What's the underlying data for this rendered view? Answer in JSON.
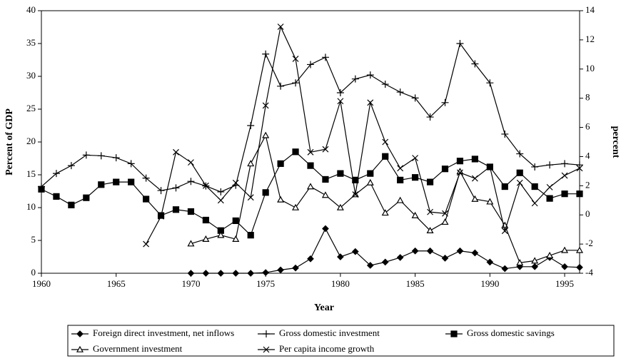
{
  "chart_data": {
    "type": "line",
    "x_label": "Year",
    "y_label": "Percent of GDP",
    "y2_label": "percent",
    "x": [
      1960,
      1961,
      1962,
      1963,
      1964,
      1965,
      1966,
      1967,
      1968,
      1969,
      1970,
      1971,
      1972,
      1973,
      1974,
      1975,
      1976,
      1977,
      1978,
      1979,
      1980,
      1981,
      1982,
      1983,
      1984,
      1985,
      1986,
      1987,
      1988,
      1989,
      1990,
      1991,
      1992,
      1993,
      1994,
      1995,
      1996
    ],
    "xlim": [
      1960,
      1996
    ],
    "xticks": [
      1960,
      1965,
      1970,
      1975,
      1980,
      1985,
      1990,
      1995
    ],
    "ylim": [
      0,
      40
    ],
    "yticks": [
      0,
      5,
      10,
      15,
      20,
      25,
      30,
      35,
      40
    ],
    "y2lim": [
      -4,
      14
    ],
    "y2ticks": [
      -4,
      -2,
      0,
      2,
      4,
      6,
      8,
      10,
      12,
      14
    ],
    "grid": false,
    "legend": "bottom",
    "series": [
      {
        "name": "Foreign direct investment, net inflows",
        "color": "#000000",
        "marker": "diamond",
        "values": [
          null,
          null,
          null,
          null,
          null,
          null,
          null,
          null,
          null,
          null,
          0,
          0,
          0,
          0,
          0,
          0.1,
          0.5,
          0.8,
          2.2,
          6.8,
          2.5,
          3.3,
          1.2,
          1.7,
          2.4,
          3.4,
          3.4,
          2.3,
          3.4,
          3.1,
          1.7,
          0.7,
          1.0,
          1.0,
          2.4,
          1.0,
          0.9
        ]
      },
      {
        "name": "Gross domestic investment",
        "color": "#000000",
        "marker": "plus",
        "values": [
          13.2,
          15.2,
          16.4,
          18.0,
          17.9,
          17.6,
          16.7,
          14.5,
          12.6,
          13.0,
          14.0,
          13.3,
          12.4,
          13.4,
          22.5,
          33.4,
          28.5,
          29.0,
          31.8,
          32.9,
          27.5,
          29.6,
          30.2,
          28.8,
          27.6,
          26.7,
          23.8,
          26.0,
          35.0,
          31.9,
          29.0,
          21.2,
          18.2,
          16.2,
          16.5,
          16.7,
          16.5
        ]
      },
      {
        "name": "Gross domestic savings",
        "color": "#000000",
        "marker": "square",
        "values": [
          12.8,
          11.7,
          10.4,
          11.5,
          13.5,
          13.9,
          13.9,
          11.3,
          8.8,
          9.7,
          9.4,
          8.1,
          6.5,
          8.0,
          5.8,
          12.3,
          16.7,
          18.5,
          16.4,
          14.3,
          15.2,
          14.2,
          15.2,
          17.8,
          14.2,
          14.6,
          13.9,
          15.9,
          17.1,
          17.4,
          16.2,
          13.2,
          15.3,
          13.2,
          11.4,
          12.1,
          12.1
        ]
      },
      {
        "name": "Government investment",
        "color": "#000000",
        "marker": "triangle",
        "values": [
          null,
          null,
          null,
          null,
          null,
          null,
          null,
          null,
          null,
          null,
          4.5,
          5.2,
          5.8,
          5.2,
          16.7,
          21.0,
          11.2,
          10.0,
          13.2,
          11.9,
          10.0,
          12.0,
          13.8,
          9.2,
          11.1,
          8.8,
          6.5,
          7.8,
          15.5,
          11.3,
          10.9,
          7.3,
          1.6,
          1.9,
          2.7,
          3.5,
          3.5
        ]
      },
      {
        "name": "Per capita income growth",
        "color": "#000000",
        "marker": "cross",
        "axis": "y2",
        "values": [
          null,
          null,
          null,
          null,
          null,
          null,
          null,
          -2.0,
          -0.1,
          4.3,
          3.6,
          2.0,
          1.0,
          2.2,
          1.2,
          7.5,
          12.9,
          10.7,
          4.3,
          4.5,
          7.8,
          1.4,
          7.7,
          5.0,
          3.2,
          3.9,
          0.2,
          0.1,
          2.9,
          2.5,
          3.3,
          -1.1,
          2.2,
          0.8,
          1.9,
          2.7,
          3.2
        ]
      }
    ]
  }
}
